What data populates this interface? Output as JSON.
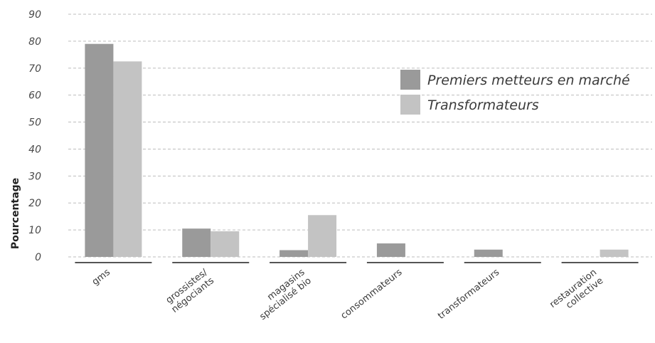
{
  "chart_data": {
    "type": "bar",
    "ylabel": "Pourcentage",
    "ylim": [
      0,
      90
    ],
    "yticks": [
      "0",
      "10",
      "20",
      "30",
      "40",
      "50",
      "60",
      "70",
      "80",
      "90"
    ],
    "grid": true,
    "legend_placement": "right",
    "categories": [
      [
        "gms"
      ],
      [
        "grossistes/",
        "négociants"
      ],
      [
        "magasins",
        "spécialisé bio"
      ],
      [
        "consommateurs"
      ],
      [
        "transformateurs"
      ],
      [
        "restauration",
        "collective"
      ]
    ],
    "series": [
      {
        "name": "Premiers metteurs en marché",
        "color": "#9a9a9a",
        "values": [
          79,
          10.5,
          2.5,
          5,
          2.7,
          null
        ]
      },
      {
        "name": "Transformateurs",
        "color": "#c3c3c3",
        "values": [
          72.5,
          9.5,
          15.5,
          null,
          null,
          2.7
        ]
      }
    ]
  }
}
